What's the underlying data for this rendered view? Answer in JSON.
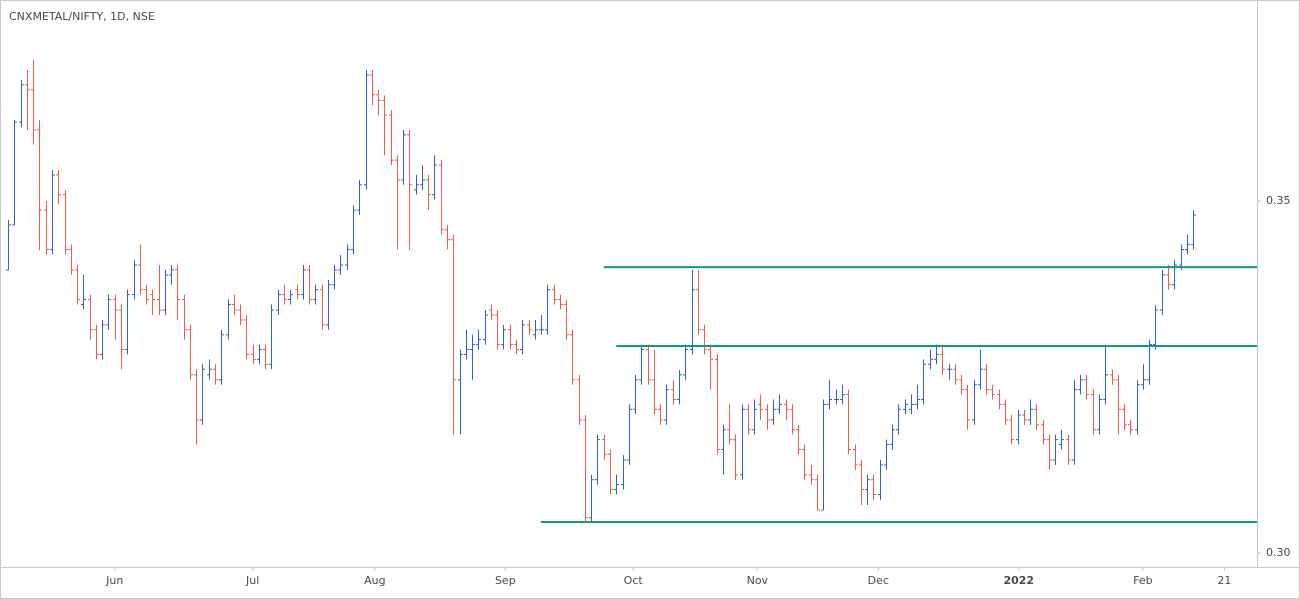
{
  "chart_data": {
    "type": "ohlc",
    "title": "CNXMETAL/NIFTY, 1D, NSE",
    "up_color": "#2f5fd0",
    "down_color": "#ef5a4c",
    "level_color": "#129a7e",
    "ylim": [
      0.298,
      0.3777
    ],
    "yticks": [
      {
        "value": 0.3,
        "label": "0.30"
      },
      0.35
    ],
    "xlim": [
      -1.3,
      199.2
    ],
    "xticks": [
      {
        "value": 17,
        "label": "Jun"
      },
      {
        "value": 39,
        "label": "Jul"
      },
      {
        "value": 58.5,
        "label": "Aug"
      },
      {
        "value": 79.3,
        "label": "Sep"
      },
      {
        "value": 99.7,
        "label": "Oct"
      },
      {
        "value": 119.5,
        "label": "Nov"
      },
      {
        "value": 138.8,
        "label": "Dec"
      },
      {
        "value": 161.2,
        "label": "2022"
      },
      {
        "value": 181,
        "label": "Feb"
      },
      {
        "value": 194,
        "label": "21"
      }
    ],
    "levels": [
      {
        "value": 0.3406,
        "start": 95
      },
      {
        "value": 0.3294,
        "start": 97
      },
      {
        "value": 0.3044,
        "start": 85
      }
    ],
    "ohlc": [
      [
        0.3402,
        0.3473,
        0.3402,
        0.3466
      ],
      [
        0.3466,
        0.3615,
        0.3466,
        0.3612
      ],
      [
        0.3612,
        0.3672,
        0.3605,
        0.3665
      ],
      [
        0.3665,
        0.3686,
        0.3601,
        0.3658
      ],
      [
        0.3658,
        0.37,
        0.358,
        0.3601
      ],
      [
        0.3601,
        0.3615,
        0.343,
        0.3487
      ],
      [
        0.3487,
        0.35,
        0.3424,
        0.3431
      ],
      [
        0.3431,
        0.3544,
        0.3424,
        0.3537
      ],
      [
        0.3537,
        0.3544,
        0.3495,
        0.3509
      ],
      [
        0.3509,
        0.3516,
        0.3424,
        0.3431
      ],
      [
        0.3431,
        0.3438,
        0.3395,
        0.3402
      ],
      [
        0.3402,
        0.3409,
        0.3353,
        0.336
      ],
      [
        0.3353,
        0.3395,
        0.3346,
        0.336
      ],
      [
        0.336,
        0.3367,
        0.3303,
        0.3317
      ],
      [
        0.3317,
        0.3324,
        0.3275,
        0.3282
      ],
      [
        0.3282,
        0.3331,
        0.3275,
        0.3324
      ],
      [
        0.3324,
        0.3367,
        0.3317,
        0.336
      ],
      [
        0.336,
        0.3367,
        0.3303,
        0.3345
      ],
      [
        0.3345,
        0.3353,
        0.3261,
        0.3289
      ],
      [
        0.3289,
        0.3374,
        0.3282,
        0.3367
      ],
      [
        0.3367,
        0.3416,
        0.336,
        0.3409
      ],
      [
        0.3409,
        0.3438,
        0.3367,
        0.3374
      ],
      [
        0.3374,
        0.3381,
        0.3353,
        0.336
      ],
      [
        0.3367,
        0.3374,
        0.3338,
        0.336
      ],
      [
        0.336,
        0.3409,
        0.3338,
        0.3345
      ],
      [
        0.3345,
        0.3402,
        0.3338,
        0.3395
      ],
      [
        0.3395,
        0.3409,
        0.3381,
        0.3402
      ],
      [
        0.3402,
        0.3409,
        0.3331,
        0.336
      ],
      [
        0.336,
        0.3367,
        0.3303,
        0.3317
      ],
      [
        0.3317,
        0.3324,
        0.3246,
        0.3253
      ],
      [
        0.3253,
        0.3261,
        0.3154,
        0.3189
      ],
      [
        0.3189,
        0.3268,
        0.3182,
        0.3261
      ],
      [
        0.3253,
        0.3275,
        0.3246,
        0.3261
      ],
      [
        0.3261,
        0.3268,
        0.3239,
        0.3246
      ],
      [
        0.3246,
        0.3317,
        0.3239,
        0.331
      ],
      [
        0.331,
        0.336,
        0.3303,
        0.3353
      ],
      [
        0.3353,
        0.3367,
        0.3338,
        0.3345
      ],
      [
        0.3345,
        0.3353,
        0.3324,
        0.3331
      ],
      [
        0.3331,
        0.3338,
        0.3275,
        0.3282
      ],
      [
        0.3282,
        0.3296,
        0.3268,
        0.3275
      ],
      [
        0.3275,
        0.3296,
        0.3268,
        0.3289
      ],
      [
        0.3289,
        0.3296,
        0.3261,
        0.3268
      ],
      [
        0.3268,
        0.3353,
        0.3261,
        0.3345
      ],
      [
        0.3345,
        0.3374,
        0.3338,
        0.3367
      ],
      [
        0.3367,
        0.3381,
        0.3353,
        0.336
      ],
      [
        0.336,
        0.3374,
        0.3353,
        0.3367
      ],
      [
        0.3374,
        0.3381,
        0.336,
        0.3367
      ],
      [
        0.3367,
        0.3409,
        0.336,
        0.3402
      ],
      [
        0.3402,
        0.3409,
        0.3353,
        0.336
      ],
      [
        0.336,
        0.3381,
        0.3353,
        0.3374
      ],
      [
        0.3374,
        0.3381,
        0.3317,
        0.3324
      ],
      [
        0.3324,
        0.3388,
        0.3317,
        0.3381
      ],
      [
        0.3381,
        0.3409,
        0.3374,
        0.3402
      ],
      [
        0.3402,
        0.3423,
        0.3395,
        0.3409
      ],
      [
        0.3409,
        0.3438,
        0.3402,
        0.3431
      ],
      [
        0.3431,
        0.3494,
        0.3424,
        0.3487
      ],
      [
        0.3487,
        0.353,
        0.348,
        0.3523
      ],
      [
        0.3523,
        0.3686,
        0.3516,
        0.3679
      ],
      [
        0.3679,
        0.3686,
        0.3636,
        0.3651
      ],
      [
        0.3651,
        0.3658,
        0.3622,
        0.3643
      ],
      [
        0.3643,
        0.365,
        0.3565,
        0.3622
      ],
      [
        0.3622,
        0.3629,
        0.3551,
        0.3558
      ],
      [
        0.3558,
        0.3565,
        0.3431,
        0.353
      ],
      [
        0.353,
        0.3601,
        0.3523,
        0.3594
      ],
      [
        0.3594,
        0.3601,
        0.343,
        0.3523
      ],
      [
        0.3516,
        0.3537,
        0.3509,
        0.3523
      ],
      [
        0.3523,
        0.3551,
        0.3516,
        0.353
      ],
      [
        0.353,
        0.3537,
        0.3487,
        0.3509
      ],
      [
        0.3509,
        0.3565,
        0.3502,
        0.3551
      ],
      [
        0.3551,
        0.3558,
        0.3452,
        0.3459
      ],
      [
        0.3459,
        0.3466,
        0.3431,
        0.3445
      ],
      [
        0.3445,
        0.3452,
        0.3168,
        0.3246
      ],
      [
        0.3246,
        0.3289,
        0.3168,
        0.3282
      ],
      [
        0.3282,
        0.3317,
        0.3275,
        0.3289
      ],
      [
        0.3289,
        0.331,
        0.3246,
        0.3296
      ],
      [
        0.3296,
        0.3317,
        0.3289,
        0.3303
      ],
      [
        0.3303,
        0.3345,
        0.3296,
        0.3338
      ],
      [
        0.3345,
        0.3353,
        0.3331,
        0.3338
      ],
      [
        0.3338,
        0.3345,
        0.3289,
        0.3296
      ],
      [
        0.3296,
        0.3324,
        0.3289,
        0.3317
      ],
      [
        0.3317,
        0.3324,
        0.3289,
        0.3296
      ],
      [
        0.3296,
        0.3303,
        0.3282,
        0.3289
      ],
      [
        0.3289,
        0.3331,
        0.3282,
        0.3324
      ],
      [
        0.3324,
        0.3331,
        0.331,
        0.3317
      ],
      [
        0.331,
        0.3331,
        0.3303,
        0.3317
      ],
      [
        0.3317,
        0.3338,
        0.331,
        0.3317
      ],
      [
        0.3317,
        0.3381,
        0.331,
        0.3374
      ],
      [
        0.3374,
        0.3381,
        0.3353,
        0.336
      ],
      [
        0.336,
        0.3367,
        0.3346,
        0.3353
      ],
      [
        0.3353,
        0.336,
        0.3303,
        0.331
      ],
      [
        0.331,
        0.3317,
        0.3239,
        0.3246
      ],
      [
        0.3246,
        0.3253,
        0.3182,
        0.3189
      ],
      [
        0.3189,
        0.3196,
        0.3043,
        0.305
      ],
      [
        0.305,
        0.3111,
        0.3043,
        0.3104
      ],
      [
        0.3104,
        0.3168,
        0.3097,
        0.3161
      ],
      [
        0.3161,
        0.3168,
        0.3132,
        0.314
      ],
      [
        0.314,
        0.3147,
        0.3083,
        0.309
      ],
      [
        0.309,
        0.3111,
        0.3083,
        0.3097
      ],
      [
        0.3097,
        0.3139,
        0.309,
        0.3132
      ],
      [
        0.3132,
        0.3211,
        0.3125,
        0.3204
      ],
      [
        0.3204,
        0.3253,
        0.3197,
        0.3246
      ],
      [
        0.3246,
        0.3296,
        0.3239,
        0.3289
      ],
      [
        0.3289,
        0.3296,
        0.3239,
        0.3246
      ],
      [
        0.3246,
        0.3289,
        0.3197,
        0.3204
      ],
      [
        0.3204,
        0.3211,
        0.3182,
        0.3189
      ],
      [
        0.3189,
        0.3239,
        0.3182,
        0.3232
      ],
      [
        0.3232,
        0.3246,
        0.3211,
        0.3218
      ],
      [
        0.3218,
        0.326,
        0.3211,
        0.3253
      ],
      [
        0.3253,
        0.3296,
        0.3246,
        0.3289
      ],
      [
        0.3289,
        0.3402,
        0.3282,
        0.3374
      ],
      [
        0.3374,
        0.3402,
        0.331,
        0.3317
      ],
      [
        0.3317,
        0.3324,
        0.3282,
        0.3289
      ],
      [
        0.3289,
        0.3296,
        0.3232,
        0.3275
      ],
      [
        0.3275,
        0.3282,
        0.314,
        0.3147
      ],
      [
        0.3147,
        0.3182,
        0.3111,
        0.3175
      ],
      [
        0.3175,
        0.3211,
        0.3154,
        0.3161
      ],
      [
        0.3161,
        0.3168,
        0.3104,
        0.3111
      ],
      [
        0.3111,
        0.3211,
        0.3104,
        0.3204
      ],
      [
        0.3204,
        0.3211,
        0.3168,
        0.3175
      ],
      [
        0.3175,
        0.3218,
        0.3168,
        0.3204
      ],
      [
        0.3211,
        0.3225,
        0.3189,
        0.3204
      ],
      [
        0.3204,
        0.3211,
        0.3175,
        0.3189
      ],
      [
        0.3189,
        0.3218,
        0.3182,
        0.3204
      ],
      [
        0.3204,
        0.3225,
        0.3197,
        0.3211
      ],
      [
        0.3211,
        0.3218,
        0.3189,
        0.3204
      ],
      [
        0.3204,
        0.3211,
        0.3168,
        0.3175
      ],
      [
        0.3175,
        0.3182,
        0.314,
        0.3147
      ],
      [
        0.3147,
        0.3154,
        0.3104,
        0.3111
      ],
      [
        0.3111,
        0.3125,
        0.3097,
        0.3104
      ],
      [
        0.3104,
        0.3111,
        0.3061,
        0.3061
      ],
      [
        0.3061,
        0.3218,
        0.3061,
        0.3211
      ],
      [
        0.3211,
        0.3246,
        0.3204,
        0.3218
      ],
      [
        0.3218,
        0.3232,
        0.3211,
        0.3218
      ],
      [
        0.3218,
        0.3239,
        0.3211,
        0.3225
      ],
      [
        0.3225,
        0.3232,
        0.314,
        0.3147
      ],
      [
        0.3147,
        0.3154,
        0.3118,
        0.3125
      ],
      [
        0.3125,
        0.3132,
        0.3068,
        0.309
      ],
      [
        0.309,
        0.3111,
        0.3068,
        0.3104
      ],
      [
        0.3104,
        0.3111,
        0.3075,
        0.3083
      ],
      [
        0.3083,
        0.3132,
        0.3075,
        0.3125
      ],
      [
        0.3125,
        0.3161,
        0.3118,
        0.3154
      ],
      [
        0.3154,
        0.3182,
        0.3147,
        0.3175
      ],
      [
        0.3175,
        0.3211,
        0.3168,
        0.3204
      ],
      [
        0.3204,
        0.3218,
        0.3197,
        0.3211
      ],
      [
        0.3204,
        0.3225,
        0.3197,
        0.3211
      ],
      [
        0.3211,
        0.3239,
        0.3204,
        0.3218
      ],
      [
        0.3218,
        0.3275,
        0.3211,
        0.3268
      ],
      [
        0.3268,
        0.3289,
        0.3261,
        0.3275
      ],
      [
        0.3275,
        0.3296,
        0.3268,
        0.3282
      ],
      [
        0.3282,
        0.3296,
        0.3253,
        0.3261
      ],
      [
        0.3261,
        0.3268,
        0.3246,
        0.3261
      ],
      [
        0.3261,
        0.3268,
        0.3239,
        0.3246
      ],
      [
        0.3246,
        0.3253,
        0.3225,
        0.3232
      ],
      [
        0.3232,
        0.3239,
        0.3175,
        0.3189
      ],
      [
        0.3189,
        0.3246,
        0.3182,
        0.3239
      ],
      [
        0.3239,
        0.3289,
        0.3232,
        0.3261
      ],
      [
        0.3261,
        0.3268,
        0.3225,
        0.3232
      ],
      [
        0.3232,
        0.3239,
        0.3218,
        0.3225
      ],
      [
        0.3225,
        0.3232,
        0.3204,
        0.3211
      ],
      [
        0.3211,
        0.3218,
        0.3182,
        0.3189
      ],
      [
        0.3189,
        0.3196,
        0.3154,
        0.3161
      ],
      [
        0.3161,
        0.3203,
        0.3154,
        0.3196
      ],
      [
        0.3196,
        0.3203,
        0.3182,
        0.3189
      ],
      [
        0.3189,
        0.3218,
        0.3182,
        0.3204
      ],
      [
        0.3204,
        0.3211,
        0.3175,
        0.3182
      ],
      [
        0.3182,
        0.3189,
        0.3154,
        0.3161
      ],
      [
        0.3161,
        0.3168,
        0.3118,
        0.3132
      ],
      [
        0.3132,
        0.3168,
        0.3125,
        0.3161
      ],
      [
        0.3154,
        0.3175,
        0.3147,
        0.3161
      ],
      [
        0.3161,
        0.3168,
        0.3125,
        0.3132
      ],
      [
        0.3132,
        0.3246,
        0.3125,
        0.3232
      ],
      [
        0.3232,
        0.3253,
        0.3225,
        0.3246
      ],
      [
        0.3246,
        0.3253,
        0.3218,
        0.3225
      ],
      [
        0.3225,
        0.3232,
        0.3168,
        0.3175
      ],
      [
        0.3175,
        0.3225,
        0.3168,
        0.3218
      ],
      [
        0.3218,
        0.3296,
        0.3211,
        0.3253
      ],
      [
        0.3253,
        0.326,
        0.3239,
        0.3246
      ],
      [
        0.3246,
        0.3253,
        0.3168,
        0.3204
      ],
      [
        0.3204,
        0.3211,
        0.3175,
        0.3182
      ],
      [
        0.3182,
        0.3189,
        0.3168,
        0.3175
      ],
      [
        0.3175,
        0.3246,
        0.3168,
        0.3239
      ],
      [
        0.3239,
        0.3268,
        0.3232,
        0.3246
      ],
      [
        0.3246,
        0.3303,
        0.3239,
        0.3296
      ],
      [
        0.3296,
        0.3352,
        0.3289,
        0.3345
      ],
      [
        0.3345,
        0.3402,
        0.3338,
        0.3395
      ],
      [
        0.3395,
        0.3409,
        0.3374,
        0.3381
      ],
      [
        0.3381,
        0.3416,
        0.3374,
        0.3409
      ],
      [
        0.3409,
        0.3438,
        0.3402,
        0.3431
      ],
      [
        0.3431,
        0.3452,
        0.3424,
        0.3438
      ],
      [
        0.3438,
        0.3487,
        0.3431,
        0.348
      ]
    ]
  }
}
